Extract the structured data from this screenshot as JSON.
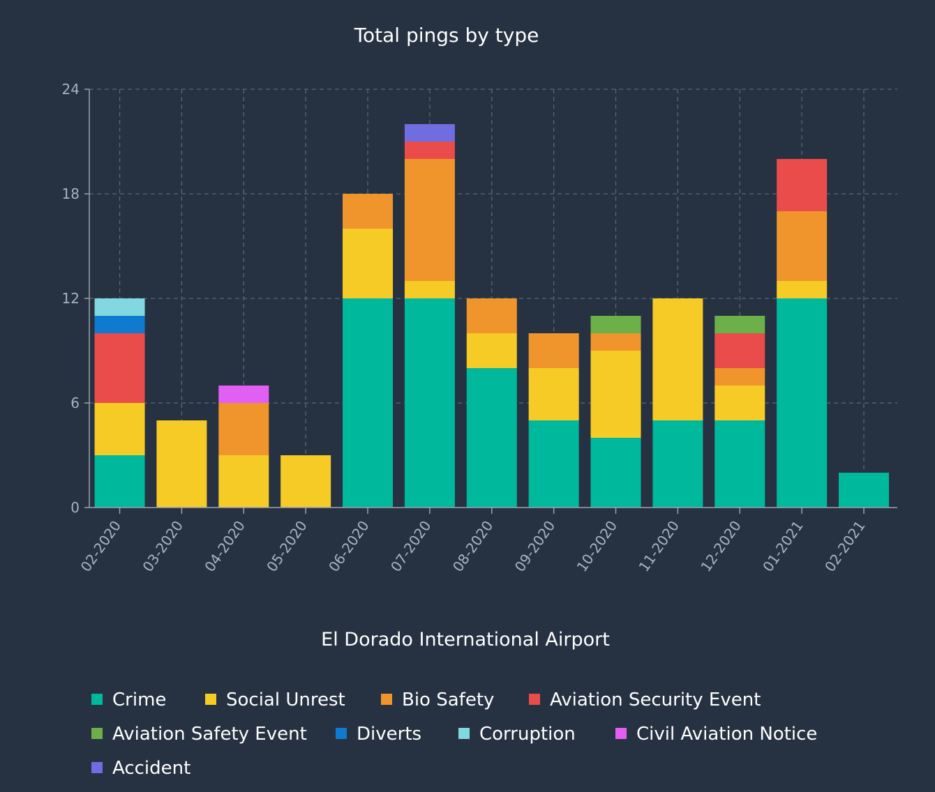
{
  "chart_data": {
    "type": "bar",
    "stacked": true,
    "title": "Total pings by type",
    "xlabel": "El Dorado International Airport",
    "ylabel": "",
    "ylim": [
      0,
      24
    ],
    "yticks": [
      0,
      6,
      12,
      18,
      24
    ],
    "grid": true,
    "legend_position": "bottom",
    "categories": [
      "02-2020",
      "03-2020",
      "04-2020",
      "05-2020",
      "06-2020",
      "07-2020",
      "08-2020",
      "09-2020",
      "10-2020",
      "11-2020",
      "12-2020",
      "01-2021",
      "02-2021"
    ],
    "series": [
      {
        "name": "Crime",
        "color": "#00b89c",
        "values": [
          3,
          0,
          0,
          0,
          12,
          12,
          8,
          5,
          4,
          5,
          5,
          12,
          2
        ]
      },
      {
        "name": "Social Unrest",
        "color": "#f7cb25",
        "values": [
          3,
          5,
          3,
          3,
          4,
          1,
          2,
          3,
          5,
          7,
          2,
          1,
          0
        ]
      },
      {
        "name": "Bio Safety",
        "color": "#ef952c",
        "values": [
          0,
          0,
          3,
          0,
          2,
          7,
          2,
          2,
          1,
          0,
          1,
          4,
          0
        ]
      },
      {
        "name": "Aviation Security Event",
        "color": "#e94c4a",
        "values": [
          4,
          0,
          0,
          0,
          0,
          1,
          0,
          0,
          0,
          0,
          2,
          3,
          0
        ]
      },
      {
        "name": "Aviation Safety Event",
        "color": "#6cb04a",
        "values": [
          0,
          0,
          0,
          0,
          0,
          0,
          0,
          0,
          1,
          0,
          1,
          0,
          0
        ]
      },
      {
        "name": "Diverts",
        "color": "#0f7bd0",
        "values": [
          1,
          0,
          0,
          0,
          0,
          0,
          0,
          0,
          0,
          0,
          0,
          0,
          0
        ]
      },
      {
        "name": "Corruption",
        "color": "#82d8e0",
        "values": [
          1,
          0,
          0,
          0,
          0,
          0,
          0,
          0,
          0,
          0,
          0,
          0,
          0
        ]
      },
      {
        "name": "Civil Aviation Notice",
        "color": "#e25ff3",
        "values": [
          0,
          0,
          1,
          0,
          0,
          0,
          0,
          0,
          0,
          0,
          0,
          0,
          0
        ]
      },
      {
        "name": "Accident",
        "color": "#6f6ddf",
        "values": [
          0,
          0,
          0,
          0,
          0,
          1,
          0,
          0,
          0,
          0,
          0,
          0,
          0
        ]
      }
    ]
  },
  "colors": {
    "background": "#263241",
    "grid": "#5b6677",
    "axis": "#9aa3b0",
    "text": "#ffffff",
    "tick_text": "#aab2bf"
  }
}
